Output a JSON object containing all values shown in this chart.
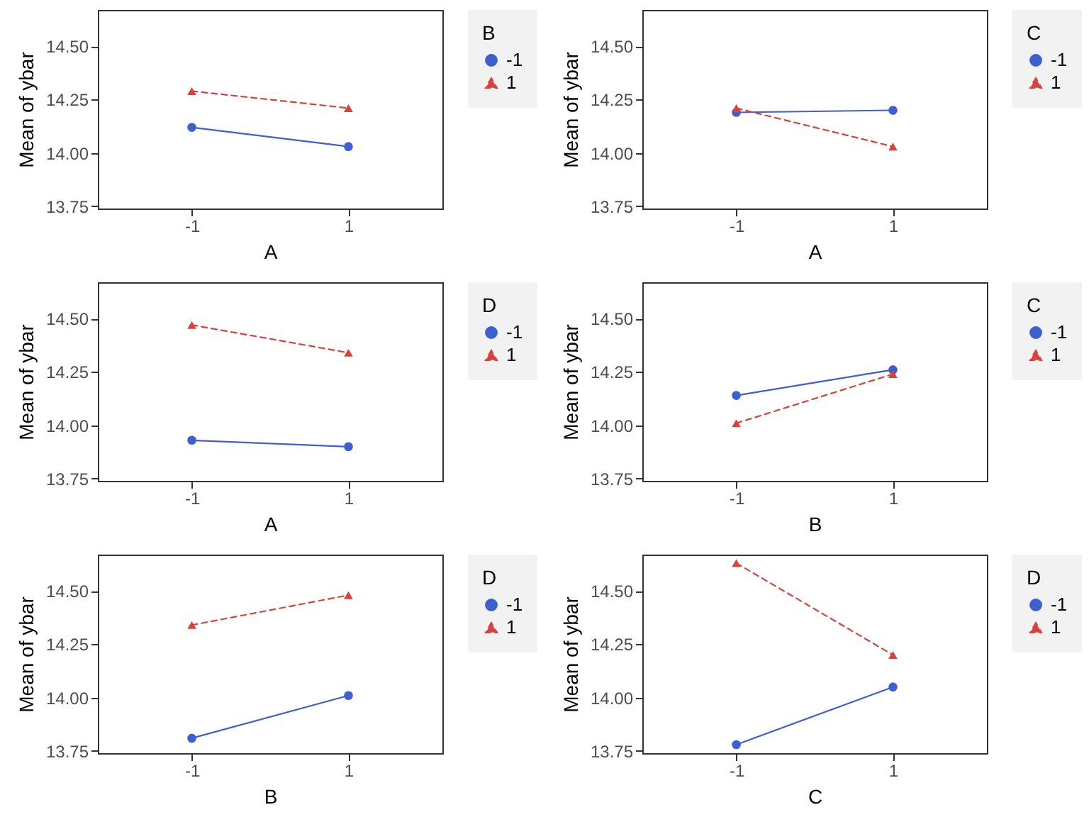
{
  "chart_data": [
    {
      "type": "line",
      "xlabel": "A",
      "ylabel": "Mean of ybar",
      "legend_title": "B",
      "categories": [
        "-1",
        "1"
      ],
      "ylim": [
        13.74,
        14.67
      ],
      "yticks": [
        {
          "value": 13.75,
          "label": "13.75"
        },
        {
          "value": 14.0,
          "label": "14.00"
        },
        {
          "value": 14.25,
          "label": "14.25"
        },
        {
          "value": 14.5,
          "label": "14.50"
        }
      ],
      "grid": false,
      "legend": "right",
      "series": [
        {
          "name": "-1",
          "color": "#3e5fcf",
          "marker": "circle",
          "line_style": "solid",
          "values": [
            14.12,
            14.03
          ]
        },
        {
          "name": "1",
          "color": "#d9413a",
          "marker": "triangle",
          "line_style": "dashed",
          "values": [
            14.29,
            14.21
          ]
        }
      ]
    },
    {
      "type": "line",
      "xlabel": "A",
      "ylabel": "Mean of ybar",
      "legend_title": "C",
      "categories": [
        "-1",
        "1"
      ],
      "ylim": [
        13.74,
        14.67
      ],
      "yticks": [
        {
          "value": 13.75,
          "label": "13.75"
        },
        {
          "value": 14.0,
          "label": "14.00"
        },
        {
          "value": 14.25,
          "label": "14.25"
        },
        {
          "value": 14.5,
          "label": "14.50"
        }
      ],
      "grid": false,
      "legend": "right",
      "series": [
        {
          "name": "-1",
          "color": "#3e5fcf",
          "marker": "circle",
          "line_style": "solid",
          "values": [
            14.19,
            14.2
          ]
        },
        {
          "name": "1",
          "color": "#d9413a",
          "marker": "triangle",
          "line_style": "dashed",
          "values": [
            14.21,
            14.03
          ]
        }
      ]
    },
    {
      "type": "line",
      "xlabel": "A",
      "ylabel": "Mean of ybar",
      "legend_title": "D",
      "categories": [
        "-1",
        "1"
      ],
      "ylim": [
        13.74,
        14.67
      ],
      "yticks": [
        {
          "value": 13.75,
          "label": "13.75"
        },
        {
          "value": 14.0,
          "label": "14.00"
        },
        {
          "value": 14.25,
          "label": "14.25"
        },
        {
          "value": 14.5,
          "label": "14.50"
        }
      ],
      "grid": false,
      "legend": "right",
      "series": [
        {
          "name": "-1",
          "color": "#3e5fcf",
          "marker": "circle",
          "line_style": "solid",
          "values": [
            13.93,
            13.9
          ]
        },
        {
          "name": "1",
          "color": "#d9413a",
          "marker": "triangle",
          "line_style": "dashed",
          "values": [
            14.47,
            14.34
          ]
        }
      ]
    },
    {
      "type": "line",
      "xlabel": "B",
      "ylabel": "Mean of ybar",
      "legend_title": "C",
      "categories": [
        "-1",
        "1"
      ],
      "ylim": [
        13.74,
        14.67
      ],
      "yticks": [
        {
          "value": 13.75,
          "label": "13.75"
        },
        {
          "value": 14.0,
          "label": "14.00"
        },
        {
          "value": 14.25,
          "label": "14.25"
        },
        {
          "value": 14.5,
          "label": "14.50"
        }
      ],
      "grid": false,
      "legend": "right",
      "series": [
        {
          "name": "-1",
          "color": "#3e5fcf",
          "marker": "circle",
          "line_style": "solid",
          "values": [
            14.14,
            14.26
          ]
        },
        {
          "name": "1",
          "color": "#d9413a",
          "marker": "triangle",
          "line_style": "dashed",
          "values": [
            14.01,
            14.24
          ]
        }
      ]
    },
    {
      "type": "line",
      "xlabel": "B",
      "ylabel": "Mean of ybar",
      "legend_title": "D",
      "categories": [
        "-1",
        "1"
      ],
      "ylim": [
        13.74,
        14.67
      ],
      "yticks": [
        {
          "value": 13.75,
          "label": "13.75"
        },
        {
          "value": 14.0,
          "label": "14.00"
        },
        {
          "value": 14.25,
          "label": "14.25"
        },
        {
          "value": 14.5,
          "label": "14.50"
        }
      ],
      "grid": false,
      "legend": "right",
      "series": [
        {
          "name": "-1",
          "color": "#3e5fcf",
          "marker": "circle",
          "line_style": "solid",
          "values": [
            13.81,
            14.01
          ]
        },
        {
          "name": "1",
          "color": "#d9413a",
          "marker": "triangle",
          "line_style": "dashed",
          "values": [
            14.34,
            14.48
          ]
        }
      ]
    },
    {
      "type": "line",
      "xlabel": "C",
      "ylabel": "Mean of ybar",
      "legend_title": "D",
      "categories": [
        "-1",
        "1"
      ],
      "ylim": [
        13.74,
        14.67
      ],
      "yticks": [
        {
          "value": 13.75,
          "label": "13.75"
        },
        {
          "value": 14.0,
          "label": "14.00"
        },
        {
          "value": 14.25,
          "label": "14.25"
        },
        {
          "value": 14.5,
          "label": "14.50"
        }
      ],
      "grid": false,
      "legend": "right",
      "series": [
        {
          "name": "-1",
          "color": "#3e5fcf",
          "marker": "circle",
          "line_style": "solid",
          "values": [
            13.78,
            14.05
          ]
        },
        {
          "name": "1",
          "color": "#d9413a",
          "marker": "triangle",
          "line_style": "dashed",
          "values": [
            14.63,
            14.2
          ]
        }
      ]
    }
  ]
}
